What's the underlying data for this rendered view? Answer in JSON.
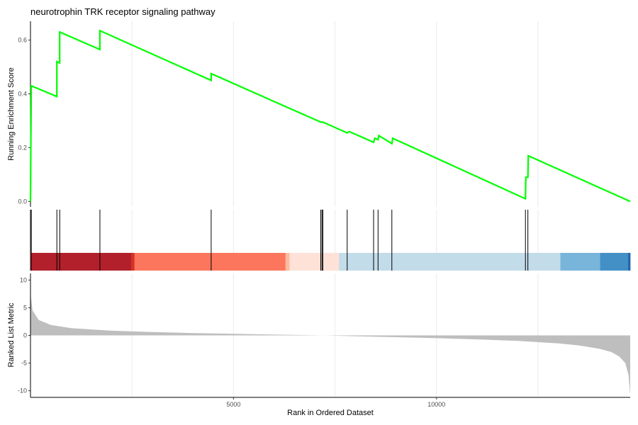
{
  "chart_data": {
    "type": "line",
    "title": "neurotrophin TRK receptor signaling pathway",
    "xlabel": "Rank in Ordered Dataset",
    "xlim": [
      0,
      14770
    ],
    "x_ticks": [
      5000,
      10000
    ],
    "grid": true,
    "panels": {
      "running_score": {
        "ylabel": "Running Enrichment Score",
        "ylim": [
          -0.02,
          0.67
        ],
        "y_ticks": [
          0.0,
          0.2,
          0.4,
          0.6
        ],
        "y_tick_labels": [
          "0.0",
          "0.2",
          "0.4",
          "0.6"
        ],
        "color": "#00ff00",
        "series": [
          {
            "x": [
              0,
              20,
              650,
              650,
              720,
              720,
              1710,
              1710,
              4450,
              4450,
              7150,
              7200,
              7800,
              7850,
              8450,
              8480,
              8560,
              8580,
              8900,
              8920,
              12190,
              12200,
              12250,
              12260,
              14770
            ],
            "y": [
              0.0,
              0.43,
              0.39,
              0.52,
              0.515,
              0.63,
              0.565,
              0.635,
              0.45,
              0.475,
              0.295,
              0.295,
              0.255,
              0.26,
              0.22,
              0.235,
              0.23,
              0.245,
              0.215,
              0.235,
              0.01,
              0.09,
              0.09,
              0.17,
              0.0
            ]
          }
        ]
      },
      "hits": {
        "positions": [
          20,
          650,
          720,
          1710,
          4450,
          7150,
          7180,
          7200,
          7800,
          8450,
          8560,
          8900,
          12190,
          12250
        ],
        "color": "#000000"
      },
      "heat_bar": {
        "segments": [
          {
            "start": 0,
            "end": 2480,
            "color": "#b2212b"
          },
          {
            "start": 2480,
            "end": 2560,
            "color": "#d73027"
          },
          {
            "start": 2560,
            "end": 6280,
            "color": "#fc765d"
          },
          {
            "start": 6280,
            "end": 6380,
            "color": "#fcbba1"
          },
          {
            "start": 6380,
            "end": 7600,
            "color": "#fee2d8"
          },
          {
            "start": 7600,
            "end": 13050,
            "color": "#c3dcea"
          },
          {
            "start": 13050,
            "end": 14030,
            "color": "#79b5db"
          },
          {
            "start": 14030,
            "end": 14720,
            "color": "#4390c6"
          },
          {
            "start": 14720,
            "end": 14770,
            "color": "#2166ac"
          }
        ]
      },
      "ranked_metric": {
        "ylabel": "Ranked List Metric",
        "ylim": [
          -11.2,
          11.2
        ],
        "y_ticks": [
          10,
          5,
          0,
          -5,
          -10
        ],
        "y_tick_labels": [
          "10",
          "5",
          "0",
          "-5",
          "-10"
        ],
        "color": "#bebebe",
        "series": [
          {
            "x": [
              0,
              10,
              50,
              200,
              500,
              1000,
              2000,
              3000,
              4000,
              5000,
              6000,
              7000,
              7500,
              8000,
              9000,
              10000,
              11000,
              12000,
              13000,
              13500,
              14000,
              14300,
              14500,
              14650,
              14730,
              14770
            ],
            "y": [
              10.0,
              7.0,
              4.5,
              2.8,
              1.9,
              1.3,
              0.85,
              0.6,
              0.42,
              0.28,
              0.14,
              0.02,
              -0.05,
              -0.15,
              -0.32,
              -0.5,
              -0.72,
              -1.0,
              -1.45,
              -1.8,
              -2.4,
              -3.0,
              -3.8,
              -5.0,
              -7.2,
              -10.8
            ]
          }
        ]
      }
    }
  }
}
